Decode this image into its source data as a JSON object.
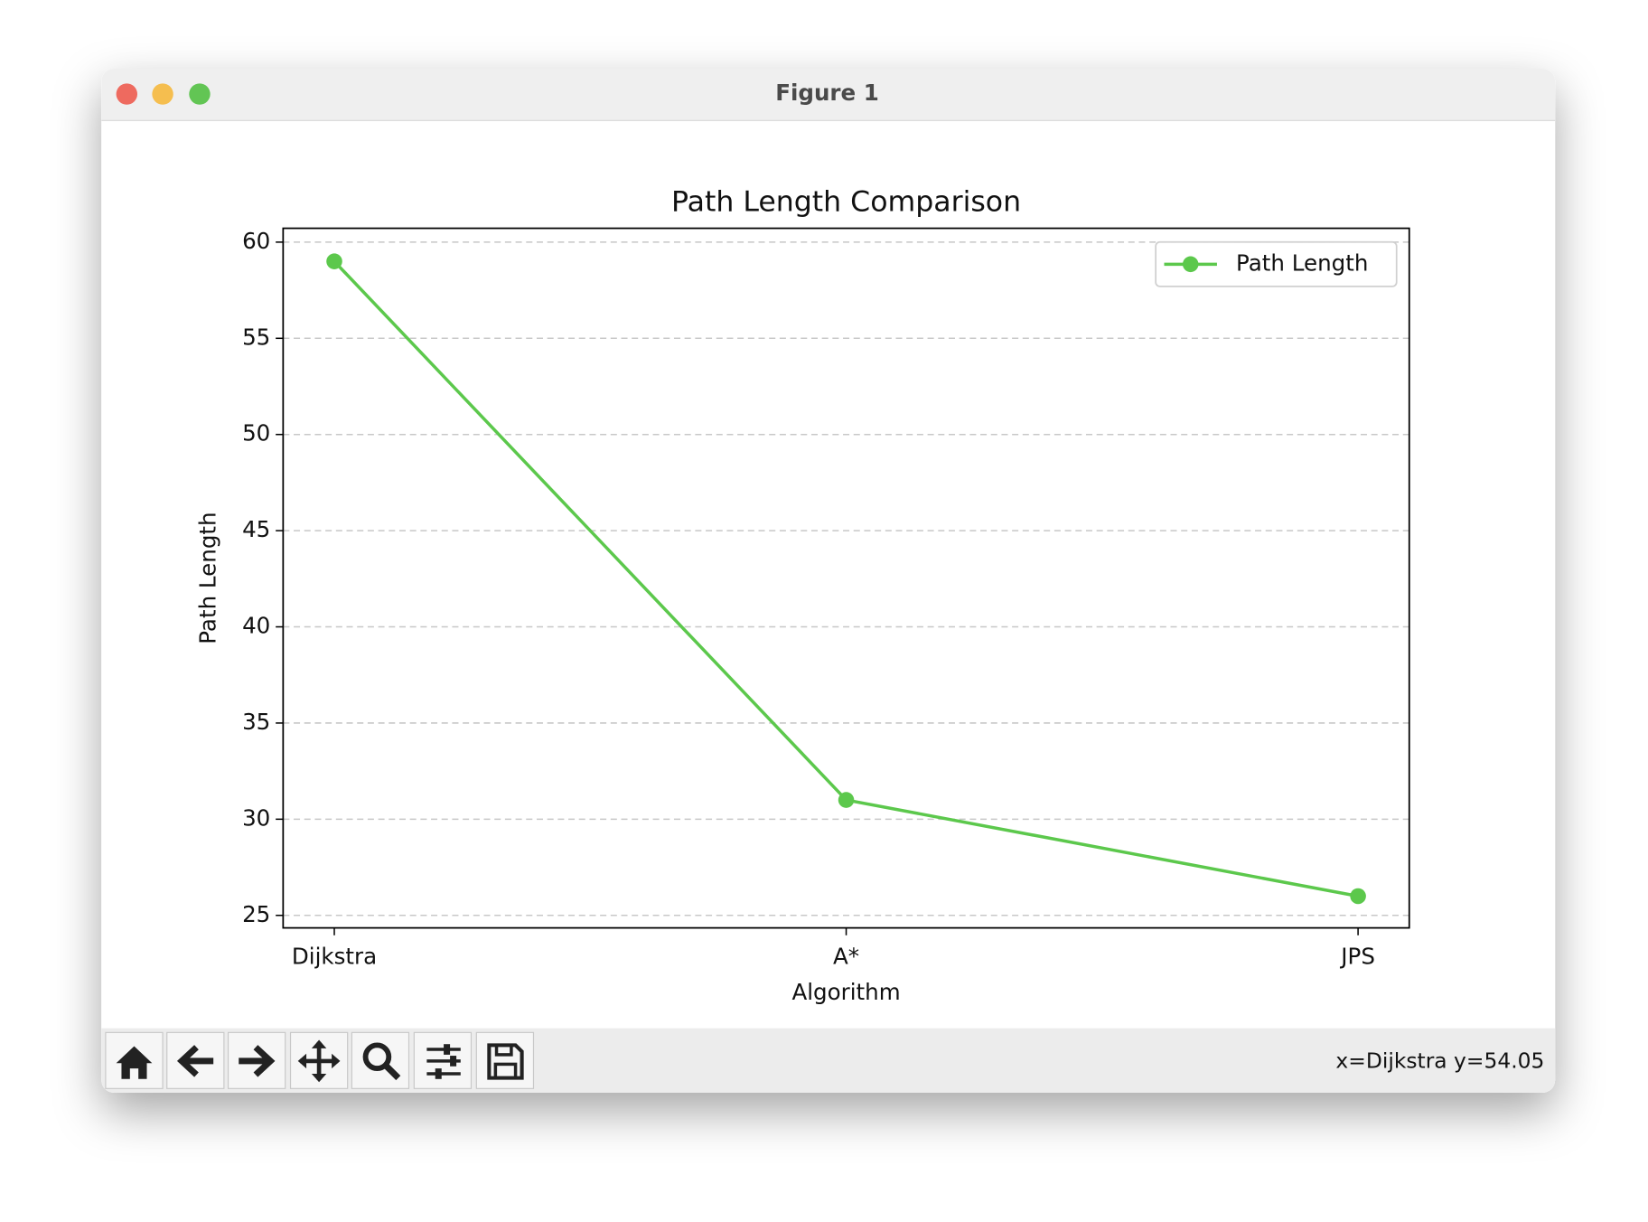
{
  "window": {
    "title": "Figure 1"
  },
  "chart_data": {
    "type": "line",
    "title": "Path Length Comparison",
    "xlabel": "Algorithm",
    "ylabel": "Path Length",
    "categories": [
      "Dijkstra",
      "A*",
      "JPS"
    ],
    "series": [
      {
        "name": "Path Length",
        "color": "#5cc84c",
        "values": [
          59,
          31,
          26
        ]
      }
    ],
    "ylim": [
      24.35,
      60.72
    ],
    "yticks": [
      25,
      30,
      35,
      40,
      45,
      50,
      55,
      60
    ],
    "grid": true,
    "legend": "upper right"
  },
  "toolbar": {
    "status": "x=Dijkstra y=54.05"
  }
}
